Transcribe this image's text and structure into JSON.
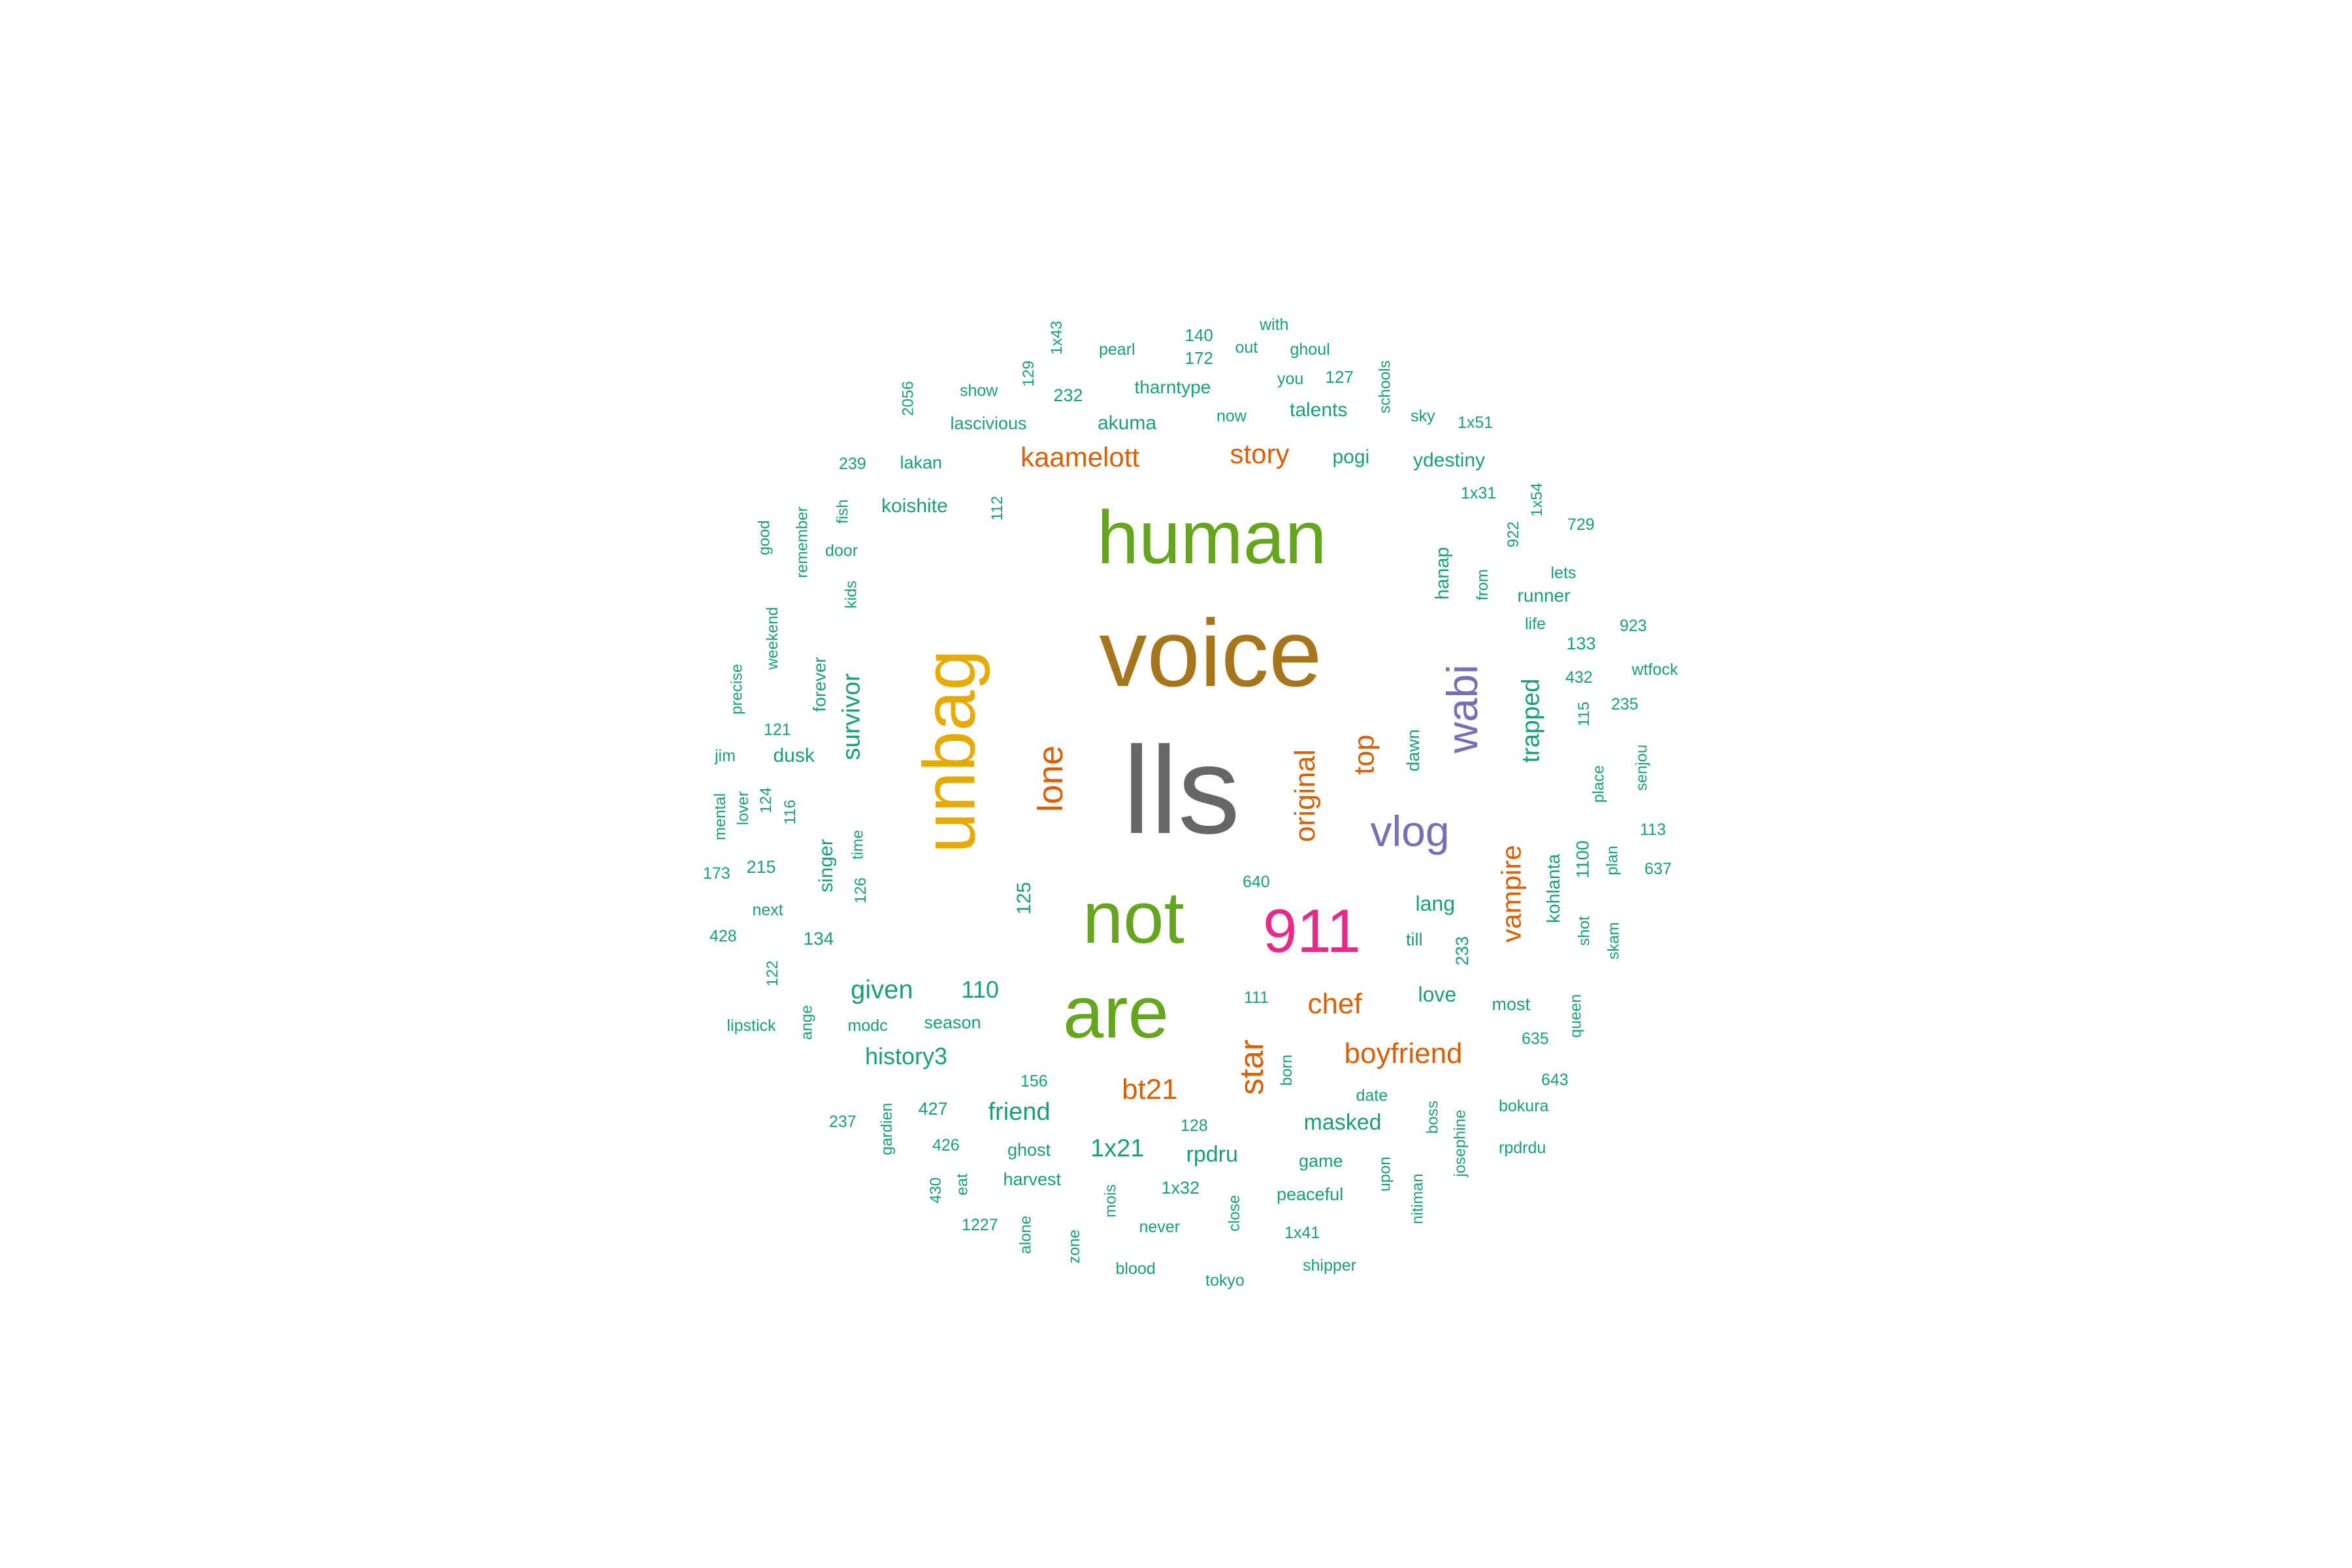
{
  "palette": {
    "teal": "#1b9e77",
    "orange": "#d95f02",
    "purple": "#7570b3",
    "magenta": "#e7298a",
    "green": "#66a61e",
    "gold": "#e6ab02",
    "brown": "#a6761d",
    "gray": "#666666"
  },
  "words": [
    {
      "text": "lls",
      "color": "gray"
    },
    {
      "text": "voice",
      "color": "brown"
    },
    {
      "text": "human",
      "color": "green"
    },
    {
      "text": "unbag",
      "color": "gold"
    },
    {
      "text": "not",
      "color": "green"
    },
    {
      "text": "are",
      "color": "green"
    },
    {
      "text": "911",
      "color": "magenta"
    },
    {
      "text": "wabi",
      "color": "purple"
    },
    {
      "text": "vlog",
      "color": "purple"
    },
    {
      "text": "lone",
      "color": "orange"
    },
    {
      "text": "original",
      "color": "orange"
    },
    {
      "text": "top",
      "color": "orange"
    },
    {
      "text": "star",
      "color": "orange"
    },
    {
      "text": "vampire",
      "color": "orange"
    },
    {
      "text": "chef",
      "color": "orange"
    },
    {
      "text": "boyfriend",
      "color": "orange"
    },
    {
      "text": "bt21",
      "color": "orange"
    },
    {
      "text": "kaamelott",
      "color": "orange"
    },
    {
      "text": "story",
      "color": "orange"
    },
    {
      "text": "trapped",
      "color": "teal"
    },
    {
      "text": "survivor",
      "color": "teal"
    },
    {
      "text": "given",
      "color": "teal"
    },
    {
      "text": "history3",
      "color": "teal"
    },
    {
      "text": "friend",
      "color": "teal"
    },
    {
      "text": "1x21",
      "color": "teal"
    },
    {
      "text": "masked",
      "color": "teal"
    },
    {
      "text": "110",
      "color": "teal"
    },
    {
      "text": "rpdru",
      "color": "teal"
    },
    {
      "text": "love",
      "color": "teal"
    },
    {
      "text": "lang",
      "color": "teal"
    },
    {
      "text": "koishite",
      "color": "teal"
    },
    {
      "text": "akuma",
      "color": "teal"
    },
    {
      "text": "tharntype",
      "color": "teal"
    },
    {
      "text": "talents",
      "color": "teal"
    },
    {
      "text": "pogi",
      "color": "teal"
    },
    {
      "text": "ydestiny",
      "color": "teal"
    },
    {
      "text": "lascivious",
      "color": "teal"
    },
    {
      "text": "lakan",
      "color": "teal"
    },
    {
      "text": "hanap",
      "color": "teal"
    },
    {
      "text": "runner",
      "color": "teal"
    },
    {
      "text": "kohlanta",
      "color": "teal"
    },
    {
      "text": "dawn",
      "color": "teal"
    },
    {
      "text": "dusk",
      "color": "teal"
    },
    {
      "text": "forever",
      "color": "teal"
    },
    {
      "text": "singer",
      "color": "teal"
    },
    {
      "text": "till",
      "color": "teal"
    },
    {
      "text": "125",
      "color": "teal"
    },
    {
      "text": "134",
      "color": "teal"
    },
    {
      "text": "215",
      "color": "teal"
    },
    {
      "text": "season",
      "color": "teal"
    },
    {
      "text": "ghost",
      "color": "teal"
    },
    {
      "text": "game",
      "color": "teal"
    },
    {
      "text": "427",
      "color": "teal"
    },
    {
      "text": "most",
      "color": "teal"
    },
    {
      "text": "1x32",
      "color": "teal"
    },
    {
      "text": "harvest",
      "color": "teal"
    },
    {
      "text": "peaceful",
      "color": "teal"
    },
    {
      "text": "1100",
      "color": "teal"
    },
    {
      "text": "233",
      "color": "teal"
    },
    {
      "text": "133",
      "color": "teal"
    },
    {
      "text": "232",
      "color": "teal"
    },
    {
      "text": "140",
      "color": "teal"
    },
    {
      "text": "172",
      "color": "teal"
    },
    {
      "text": "127",
      "color": "teal"
    },
    {
      "text": "pearl",
      "color": "teal"
    },
    {
      "text": "out",
      "color": "teal"
    },
    {
      "text": "with",
      "color": "teal"
    },
    {
      "text": "ghoul",
      "color": "teal"
    },
    {
      "text": "you",
      "color": "teal"
    },
    {
      "text": "now",
      "color": "teal"
    },
    {
      "text": "show",
      "color": "teal"
    },
    {
      "text": "sky",
      "color": "teal"
    },
    {
      "text": "1x51",
      "color": "teal"
    },
    {
      "text": "1x31",
      "color": "teal"
    },
    {
      "text": "729",
      "color": "teal"
    },
    {
      "text": "lets",
      "color": "teal"
    },
    {
      "text": "life",
      "color": "teal"
    },
    {
      "text": "923",
      "color": "teal"
    },
    {
      "text": "wtfock",
      "color": "teal"
    },
    {
      "text": "432",
      "color": "teal"
    },
    {
      "text": "235",
      "color": "teal"
    },
    {
      "text": "113",
      "color": "teal"
    },
    {
      "text": "637",
      "color": "teal"
    },
    {
      "text": "239",
      "color": "teal"
    },
    {
      "text": "door",
      "color": "teal"
    },
    {
      "text": "jim",
      "color": "teal"
    },
    {
      "text": "121",
      "color": "teal"
    },
    {
      "text": "173",
      "color": "teal"
    },
    {
      "text": "next",
      "color": "teal"
    },
    {
      "text": "428",
      "color": "teal"
    },
    {
      "text": "lipstick",
      "color": "teal"
    },
    {
      "text": "modc",
      "color": "teal"
    },
    {
      "text": "640",
      "color": "teal"
    },
    {
      "text": "111",
      "color": "teal"
    },
    {
      "text": "156",
      "color": "teal"
    },
    {
      "text": "237",
      "color": "teal"
    },
    {
      "text": "426",
      "color": "teal"
    },
    {
      "text": "128",
      "color": "teal"
    },
    {
      "text": "date",
      "color": "teal"
    },
    {
      "text": "bokura",
      "color": "teal"
    },
    {
      "text": "rpdrdu",
      "color": "teal"
    },
    {
      "text": "635",
      "color": "teal"
    },
    {
      "text": "643",
      "color": "teal"
    },
    {
      "text": "1227",
      "color": "teal"
    },
    {
      "text": "never",
      "color": "teal"
    },
    {
      "text": "1x41",
      "color": "teal"
    },
    {
      "text": "blood",
      "color": "teal"
    },
    {
      "text": "tokyo",
      "color": "teal"
    },
    {
      "text": "shipper",
      "color": "teal"
    },
    {
      "text": "2056",
      "color": "teal"
    },
    {
      "text": "129",
      "color": "teal"
    },
    {
      "text": "1x43",
      "color": "teal"
    },
    {
      "text": "schools",
      "color": "teal"
    },
    {
      "text": "112",
      "color": "teal"
    },
    {
      "text": "fish",
      "color": "teal"
    },
    {
      "text": "good",
      "color": "teal"
    },
    {
      "text": "remember",
      "color": "teal"
    },
    {
      "text": "kids",
      "color": "teal"
    },
    {
      "text": "weekend",
      "color": "teal"
    },
    {
      "text": "precise",
      "color": "teal"
    },
    {
      "text": "mental",
      "color": "teal"
    },
    {
      "text": "lover",
      "color": "teal"
    },
    {
      "text": "124",
      "color": "teal"
    },
    {
      "text": "116",
      "color": "teal"
    },
    {
      "text": "time",
      "color": "teal"
    },
    {
      "text": "126",
      "color": "teal"
    },
    {
      "text": "122",
      "color": "teal"
    },
    {
      "text": "ange",
      "color": "teal"
    },
    {
      "text": "1x54",
      "color": "teal"
    },
    {
      "text": "922",
      "color": "teal"
    },
    {
      "text": "from",
      "color": "teal"
    },
    {
      "text": "115",
      "color": "teal"
    },
    {
      "text": "senjou",
      "color": "teal"
    },
    {
      "text": "place",
      "color": "teal"
    },
    {
      "text": "plan",
      "color": "teal"
    },
    {
      "text": "shot",
      "color": "teal"
    },
    {
      "text": "skam",
      "color": "teal"
    },
    {
      "text": "queen",
      "color": "teal"
    },
    {
      "text": "born",
      "color": "teal"
    },
    {
      "text": "boss",
      "color": "teal"
    },
    {
      "text": "josephine",
      "color": "teal"
    },
    {
      "text": "upon",
      "color": "teal"
    },
    {
      "text": "nitiman",
      "color": "teal"
    },
    {
      "text": "close",
      "color": "teal"
    },
    {
      "text": "mois",
      "color": "teal"
    },
    {
      "text": "zone",
      "color": "teal"
    },
    {
      "text": "alone",
      "color": "teal"
    },
    {
      "text": "eat",
      "color": "teal"
    },
    {
      "text": "430",
      "color": "teal"
    },
    {
      "text": "gardien",
      "color": "teal"
    }
  ]
}
